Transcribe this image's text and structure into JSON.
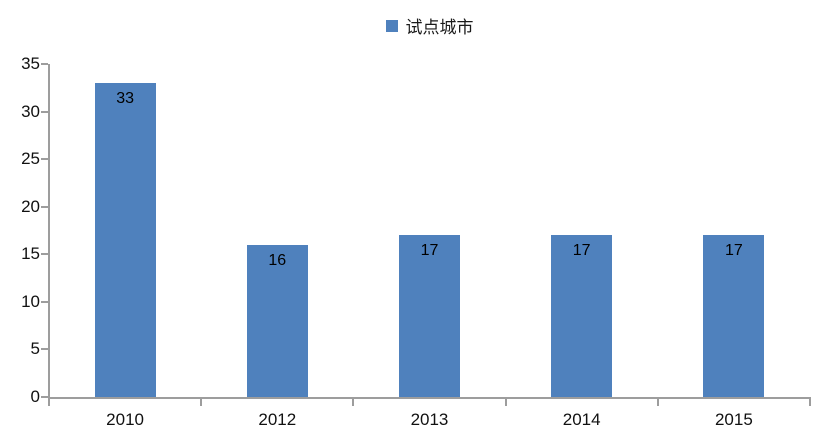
{
  "chart_data": {
    "type": "bar",
    "title": "",
    "xlabel": "",
    "ylabel": "",
    "categories": [
      "2010",
      "2012",
      "2013",
      "2014",
      "2015"
    ],
    "series": [
      {
        "name": "试点城市",
        "values": [
          33,
          16,
          17,
          17,
          17
        ]
      }
    ],
    "data_labels": [
      "33",
      "16",
      "17",
      "17",
      "17"
    ],
    "ylim": [
      0,
      35
    ],
    "ytick_step": 5,
    "ytick_labels": [
      "0",
      "5",
      "10",
      "15",
      "20",
      "25",
      "30",
      "35"
    ],
    "grid": false,
    "legend_position": "top-center",
    "colors": {
      "bar": "#4f81bd",
      "axis": "#9d9d9d",
      "text": "#111111",
      "background": "#ffffff"
    }
  }
}
